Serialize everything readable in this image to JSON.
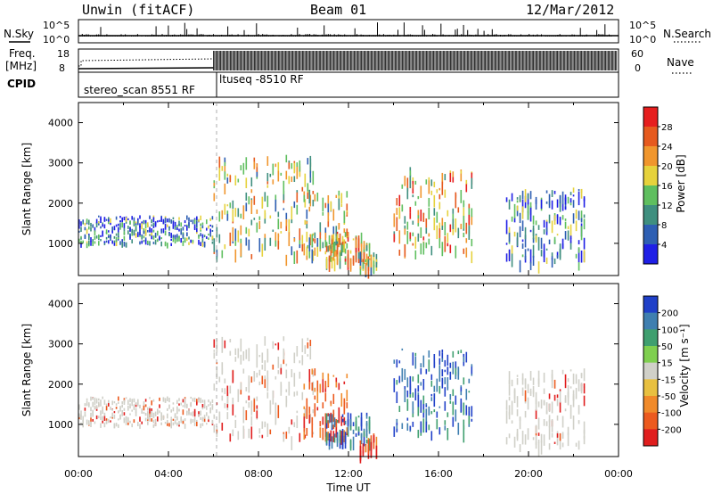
{
  "header": {
    "title_left": "Unwin (fitACF)",
    "title_center": "Beam 01",
    "title_right": "12/Mar/2012"
  },
  "top_panels": {
    "nsky_label": "N.Sky",
    "nsearch_label": "N.Search",
    "counts_ticks": [
      "10^5",
      "10^0"
    ],
    "freq_label_1": "Freq.",
    "freq_label_2": "[MHz]",
    "freq_ticks": [
      "18",
      "8"
    ],
    "nave_label": "Nave",
    "nave_ticks": [
      "60",
      "0"
    ],
    "cpid_label": "CPID",
    "cpid_segments": [
      {
        "label": "stereo_scan 8551 RF",
        "start_hour": 0,
        "end_hour": 6
      },
      {
        "label": "ltuseq -8510 RF",
        "start_hour": 6,
        "end_hour": 24
      }
    ]
  },
  "power_panel": {
    "ylabel": "Slant Range [km]",
    "yticks": [
      "1000",
      "2000",
      "3000",
      "4000"
    ],
    "colorbar_label": "Power [dB]",
    "colorbar_ticks": [
      "4",
      "8",
      "12",
      "16",
      "20",
      "24",
      "28"
    ],
    "colors": [
      "#1f1fe6",
      "#2e5fb3",
      "#3f8f7f",
      "#5fbf5f",
      "#e6d23c",
      "#f0962d",
      "#e65a1e",
      "#e61e1e"
    ]
  },
  "velocity_panel": {
    "ylabel": "Slant Range [km]",
    "yticks": [
      "1000",
      "2000",
      "3000",
      "4000"
    ],
    "colorbar_label": "Velocity [m s⁻¹]",
    "colorbar_ticks": [
      "200",
      "100",
      "50",
      "15",
      "-15",
      "-50",
      "-100",
      "-200"
    ],
    "colors": [
      "#2040c8",
      "#3f7fb0",
      "#3f9f6f",
      "#7fcf4f",
      "#d0d0c8",
      "#e8c040",
      "#f08a2a",
      "#ec5a1e",
      "#e01e1e"
    ]
  },
  "x_axis": {
    "label": "Time UT",
    "ticks": [
      "00:00",
      "04:00",
      "08:00",
      "12:00",
      "16:00",
      "20:00",
      "00:00"
    ]
  },
  "chart_data": {
    "type": "heatmap",
    "x_range_hours": [
      0,
      24
    ],
    "y_range_km": [
      200,
      4500
    ],
    "colorbars": [
      {
        "quantity": "Power",
        "unit": "dB",
        "range": [
          0,
          32
        ]
      },
      {
        "quantity": "Velocity",
        "unit": "m/s",
        "range": [
          -250,
          250
        ]
      }
    ],
    "echo_regions": [
      {
        "start_hour": 0.0,
        "end_hour": 6.0,
        "range_km": [
          1000,
          1700
        ],
        "power_db": 10,
        "velocity": 0
      },
      {
        "start_hour": 6.0,
        "end_hour": 10.5,
        "range_km": [
          700,
          3200
        ],
        "power_db": 16,
        "velocity": -20
      },
      {
        "start_hour": 10.0,
        "end_hour": 12.0,
        "range_km": [
          800,
          2400
        ],
        "power_db": 18,
        "velocity": -150
      },
      {
        "start_hour": 11.0,
        "end_hour": 13.0,
        "range_km": [
          600,
          1300
        ],
        "power_db": 20,
        "velocity": 150
      },
      {
        "start_hour": 12.5,
        "end_hour": 13.3,
        "range_km": [
          300,
          800
        ],
        "power_db": 18,
        "velocity": -200
      },
      {
        "start_hour": 14.0,
        "end_hour": 17.5,
        "range_km": [
          800,
          2900
        ],
        "power_db": 20,
        "velocity": 50
      },
      {
        "start_hour": 19.0,
        "end_hour": 22.5,
        "range_km": [
          500,
          2400
        ],
        "power_db": 10,
        "velocity": 0
      }
    ]
  }
}
